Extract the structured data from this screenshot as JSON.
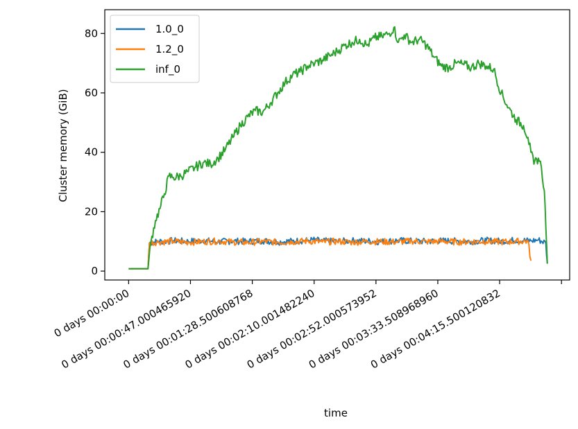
{
  "chart_data": {
    "type": "line",
    "xlabel": "time",
    "ylabel": "Cluster memory (GiB)",
    "xlim_seconds": [
      -16,
      296
    ],
    "ylim": [
      -3,
      88
    ],
    "grid": false,
    "legend_placement": "top-left",
    "x_ticks": [
      {
        "t": 0,
        "label": "0 days 00:00:00"
      },
      {
        "t": 41.5,
        "label": "0 days 00:00:47.000465920"
      },
      {
        "t": 83,
        "label": "0 days 00:01:28.500608768"
      },
      {
        "t": 124.5,
        "label": "0 days 00:02:10.001482240"
      },
      {
        "t": 166,
        "label": "0 days 00:02:52.000573952"
      },
      {
        "t": 207.5,
        "label": "0 days 00:03:33.508968960"
      },
      {
        "t": 249,
        "label": "0 days 00:04:15.500120832"
      },
      {
        "t": 290.5,
        "label": ""
      }
    ],
    "y_ticks": [
      0,
      20,
      40,
      60,
      80
    ],
    "series": [
      {
        "name": "1.0_0",
        "color": "#1f77b4",
        "x": [
          0,
          10,
          13,
          14,
          20,
          30,
          40,
          50,
          60,
          70,
          80,
          90,
          100,
          110,
          120,
          125,
          130,
          140,
          150,
          160,
          170,
          180,
          190,
          200,
          210,
          220,
          230,
          240,
          250,
          260,
          270,
          275,
          280,
          281
        ],
        "y": [
          0.8,
          0.8,
          0.8,
          9.5,
          10.0,
          10.2,
          10.0,
          10.3,
          9.9,
          10.1,
          10.0,
          10.2,
          9.8,
          10.1,
          10.3,
          10.5,
          10.1,
          10.0,
          10.2,
          10.1,
          9.9,
          10.3,
          10.1,
          10.0,
          10.2,
          10.1,
          10.0,
          10.3,
          10.1,
          10.4,
          10.2,
          10.5,
          9.5,
          2.5
        ]
      },
      {
        "name": "1.2_0",
        "color": "#ff7f0e",
        "x": [
          0,
          10,
          13,
          14,
          20,
          30,
          40,
          50,
          60,
          70,
          80,
          90,
          100,
          110,
          120,
          130,
          140,
          150,
          160,
          170,
          180,
          190,
          200,
          210,
          220,
          230,
          240,
          250,
          260,
          268,
          270
        ],
        "y": [
          0.8,
          0.8,
          0.8,
          9.5,
          9.8,
          10.0,
          9.7,
          9.9,
          10.1,
          9.8,
          9.6,
          10.0,
          9.7,
          9.9,
          10.1,
          9.8,
          10.0,
          9.7,
          10.0,
          9.9,
          9.8,
          10.1,
          9.9,
          10.0,
          9.8,
          9.9,
          10.0,
          9.8,
          10.0,
          10.1,
          3.5
        ]
      },
      {
        "name": "inf_0",
        "color": "#2ca02c",
        "x": [
          0,
          10,
          13,
          15,
          18,
          21,
          24,
          27,
          30,
          35,
          40,
          45,
          50,
          55,
          60,
          65,
          70,
          75,
          80,
          85,
          90,
          95,
          100,
          105,
          110,
          115,
          120,
          125,
          130,
          135,
          140,
          145,
          150,
          155,
          160,
          165,
          170,
          175,
          178,
          181,
          185,
          190,
          195,
          200,
          205,
          210,
          215,
          220,
          225,
          230,
          235,
          240,
          245,
          250,
          255,
          260,
          265,
          268,
          270,
          272,
          275,
          277,
          279,
          280,
          281
        ],
        "y": [
          0.8,
          0.8,
          0.8,
          10.0,
          17.0,
          21.0,
          26.0,
          32.0,
          31.5,
          32.0,
          33.5,
          35.0,
          36.5,
          36.0,
          38.0,
          41.0,
          45.0,
          49.0,
          52.0,
          54.0,
          53.5,
          56.5,
          60.0,
          63.5,
          66.0,
          67.0,
          69.0,
          70.0,
          71.0,
          72.5,
          74.0,
          76.0,
          77.0,
          78.0,
          76.0,
          78.5,
          79.0,
          80.0,
          82.0,
          77.0,
          79.5,
          77.0,
          78.0,
          76.0,
          72.0,
          69.0,
          68.5,
          70.0,
          69.5,
          68.5,
          70.0,
          69.0,
          68.0,
          60.0,
          55.0,
          51.0,
          49.0,
          45.0,
          40.0,
          36.0,
          38.0,
          35.0,
          27.0,
          15.0,
          2.5
        ]
      }
    ]
  }
}
